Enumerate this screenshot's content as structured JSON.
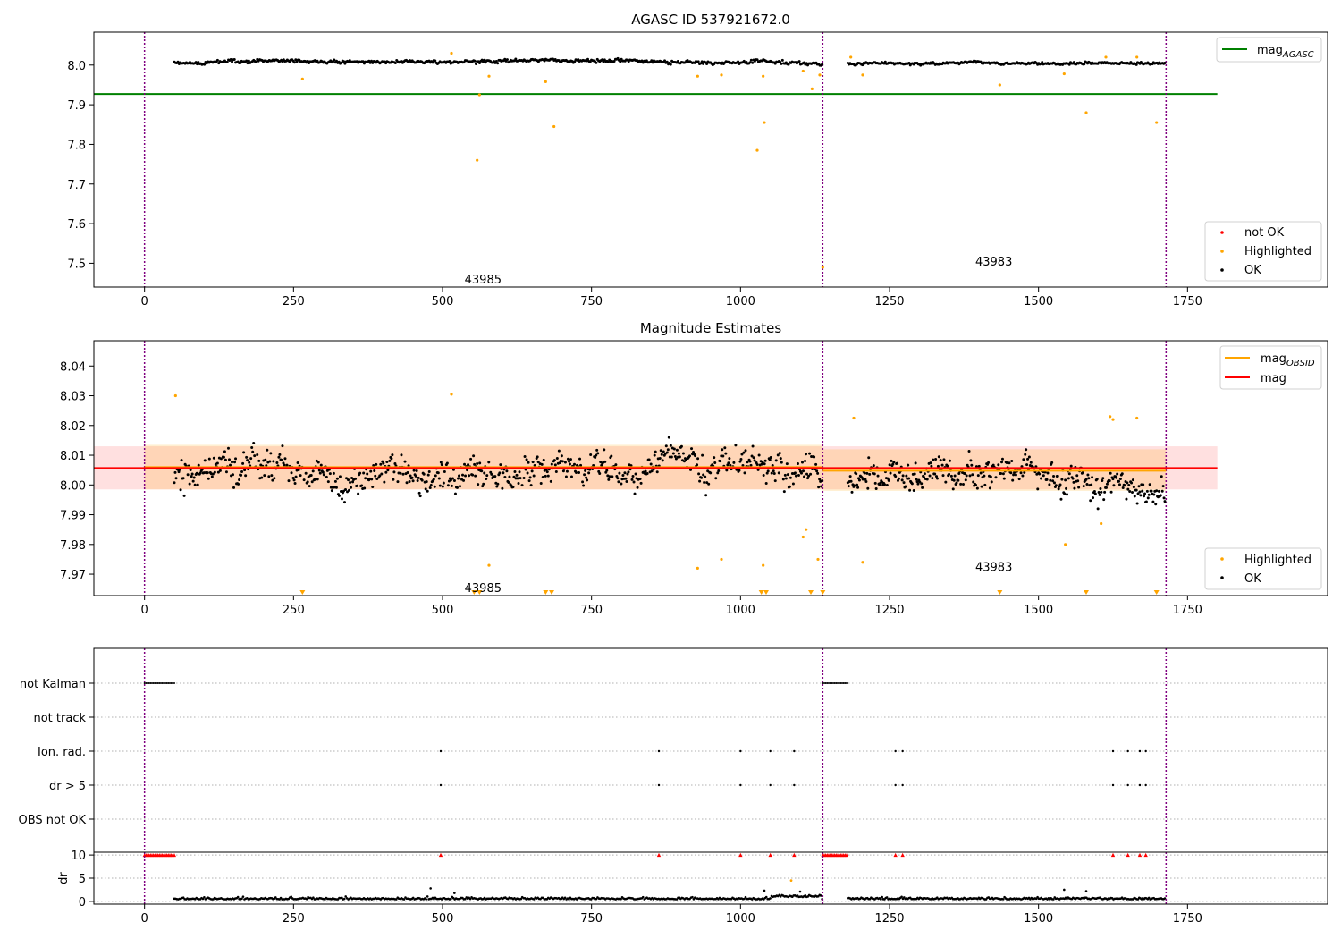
{
  "chart_data": [
    {
      "type": "scatter",
      "title": "AGASC ID 537921672.0",
      "xlim": [
        -85,
        1985
      ],
      "ylim": [
        7.44,
        8.083
      ],
      "xticks": [
        0,
        250,
        500,
        750,
        1000,
        1250,
        1500,
        1750
      ],
      "yticks": [
        7.5,
        7.6,
        7.7,
        7.8,
        7.9,
        8.0
      ],
      "ytick_labels": [
        "7.5",
        "7.6",
        "7.7",
        "7.8",
        "7.9",
        "8.0"
      ],
      "obsid_boundaries": [
        0,
        1138,
        1714
      ],
      "obsid_labels": [
        {
          "text": "43985",
          "x": 568,
          "y": 7.46
        },
        {
          "text": "43983",
          "x": 1425,
          "y": 7.505
        }
      ],
      "agasc_mag": {
        "value": 7.927,
        "x_range": [
          -85,
          1800
        ],
        "color": "#008000",
        "legend": "mag_AGASC"
      },
      "series": [
        {
          "name": "not OK",
          "color": "#ff0000",
          "points": []
        },
        {
          "name": "Highlighted",
          "color": "#ffa500",
          "points": [
            [
              265,
              7.965
            ],
            [
              515,
              8.03
            ],
            [
              558,
              7.76
            ],
            [
              562,
              7.925
            ],
            [
              578,
              7.972
            ],
            [
              673,
              7.958
            ],
            [
              687,
              7.845
            ],
            [
              928,
              7.972
            ],
            [
              968,
              7.975
            ],
            [
              1028,
              7.785
            ],
            [
              1040,
              7.855
            ],
            [
              1038,
              7.972
            ],
            [
              1105,
              7.985
            ],
            [
              1120,
              7.94
            ],
            [
              1133,
              7.975
            ],
            [
              1138,
              7.49
            ],
            [
              1185,
              8.02
            ],
            [
              1205,
              7.975
            ],
            [
              1435,
              7.95
            ],
            [
              1543,
              7.978
            ],
            [
              1580,
              7.88
            ],
            [
              1613,
              8.02
            ],
            [
              1665,
              8.02
            ],
            [
              1698,
              7.855
            ]
          ]
        },
        {
          "name": "OK",
          "color": "#000000",
          "segments": [
            {
              "x_start": 50,
              "x_end": 1137,
              "base": 8.008,
              "noise": 0.005,
              "n": 540,
              "seed": 11
            },
            {
              "x_start": 1180,
              "x_end": 1712,
              "base": 8.004,
              "noise": 0.004,
              "n": 280,
              "seed": 23
            }
          ]
        }
      ],
      "legend_lines": [
        "mag_AGASC"
      ],
      "legend_points": [
        "not OK",
        "Highlighted",
        "OK"
      ]
    },
    {
      "type": "scatter",
      "title": "Magnitude Estimates",
      "xlim": [
        -85,
        1985
      ],
      "ylim": [
        7.9628,
        8.0485
      ],
      "xticks": [
        0,
        250,
        500,
        750,
        1000,
        1250,
        1500,
        1750
      ],
      "yticks": [
        7.97,
        7.98,
        7.99,
        8.0,
        8.01,
        8.02,
        8.03,
        8.04
      ],
      "ytick_labels": [
        "7.97",
        "7.98",
        "7.99",
        "8.00",
        "8.01",
        "8.02",
        "8.03",
        "8.04"
      ],
      "obsid_boundaries": [
        0,
        1138,
        1714
      ],
      "obsid_labels": [
        {
          "text": "43985",
          "x": 568,
          "y": 7.9655
        },
        {
          "text": "43983",
          "x": 1425,
          "y": 7.9725
        }
      ],
      "mag": {
        "value": 8.0057,
        "band": [
          7.9985,
          8.013
        ],
        "x_range": [
          -85,
          1800
        ],
        "color": "#ff0000",
        "legend": "mag"
      },
      "mag_obsid": [
        {
          "x_range": [
            0,
            1138
          ],
          "value": 8.006,
          "band": [
            7.9985,
            8.0135
          ]
        },
        {
          "x_range": [
            1138,
            1714
          ],
          "value": 8.0048,
          "band": [
            7.998,
            8.012
          ]
        }
      ],
      "mag_obsid_color": "#ffa500",
      "series": [
        {
          "name": "Highlighted",
          "color": "#ffa500",
          "points": [
            [
              52,
              8.03
            ],
            [
              515,
              8.0305
            ],
            [
              578,
              7.973
            ],
            [
              928,
              7.972
            ],
            [
              968,
              7.975
            ],
            [
              1038,
              7.973
            ],
            [
              1105,
              7.9825
            ],
            [
              1110,
              7.985
            ],
            [
              1130,
              7.975
            ],
            [
              1190,
              8.0225
            ],
            [
              1205,
              7.974
            ],
            [
              1545,
              7.98
            ],
            [
              1605,
              7.987
            ],
            [
              1620,
              8.023
            ],
            [
              1625,
              8.022
            ],
            [
              1665,
              8.0225
            ]
          ]
        },
        {
          "name": "Highlighted (below range)",
          "color": "#ffa500",
          "markers": "down-triangle",
          "x": [
            265,
            553,
            562,
            673,
            683,
            1035,
            1043,
            1118,
            1138,
            1435,
            1580,
            1698
          ]
        },
        {
          "name": "OK",
          "color": "#000000",
          "segments": [
            {
              "x_start": 50,
              "x_end": 1137,
              "base": 8.0055,
              "noise": 0.0062,
              "n": 720,
              "seed": 37
            },
            {
              "x_start": 1180,
              "x_end": 1712,
              "base": 8.0045,
              "noise": 0.0058,
              "n": 380,
              "seed": 53
            }
          ]
        }
      ],
      "legend_lines": [
        "mag_OBSID",
        "mag"
      ],
      "legend_points": [
        "Highlighted",
        "OK"
      ]
    },
    {
      "type": "scatter",
      "title": "",
      "xlim": [
        -85,
        1985
      ],
      "flag_rows": [
        "not Kalman",
        "not track",
        "Ion. rad.",
        "dr > 5",
        "OBS not OK"
      ],
      "flags": {
        "not Kalman": {
          "ranges": [
            [
              0,
              50
            ],
            [
              1138,
              1180
            ]
          ]
        },
        "not track": {
          "ranges": []
        },
        "Ion. rad.": {
          "x": [
            497,
            863,
            1000,
            1050,
            1090,
            1260,
            1272,
            1625,
            1650,
            1670,
            1680
          ]
        },
        "dr > 5": {
          "x": [
            497,
            863,
            1000,
            1050,
            1090,
            1260,
            1272,
            1625,
            1650,
            1670,
            1680
          ]
        },
        "OBS not OK": {
          "x": []
        }
      },
      "dr": {
        "ylabel": "dr",
        "ylim": [
          -0.6,
          10.6
        ],
        "yticks": [
          0,
          5,
          10
        ],
        "ytick_labels": [
          "0",
          "5",
          "10"
        ],
        "clip_value": 10,
        "clipped_x": [
          497,
          863,
          1000,
          1050,
          1090,
          1260,
          1272,
          1625,
          1650,
          1670,
          1680
        ],
        "clipped_ranges": [
          [
            0,
            50
          ],
          [
            1138,
            1180
          ]
        ],
        "highlighted": [
          [
            1085,
            4.5
          ]
        ],
        "outliers": [
          [
            480,
            2.8
          ],
          [
            520,
            1.8
          ],
          [
            1040,
            2.3
          ],
          [
            1543,
            2.5
          ],
          [
            1580,
            2.2
          ],
          [
            1100,
            2.1
          ]
        ]
      },
      "xticks": [
        0,
        250,
        500,
        750,
        1000,
        1250,
        1500,
        1750
      ],
      "xtick_labels": [
        "0",
        "250",
        "500",
        "750",
        "1000",
        "1250",
        "1500",
        "1750"
      ],
      "obsid_boundaries": [
        0,
        1138,
        1714
      ]
    }
  ],
  "legend_text": {
    "mag_agasc_base": "mag",
    "mag_agasc_sub": "AGASC",
    "mag_obsid_base": "mag",
    "mag_obsid_sub": "OBSID",
    "mag": "mag",
    "not_ok": "not OK",
    "highlighted": "Highlighted",
    "ok": "OK"
  }
}
